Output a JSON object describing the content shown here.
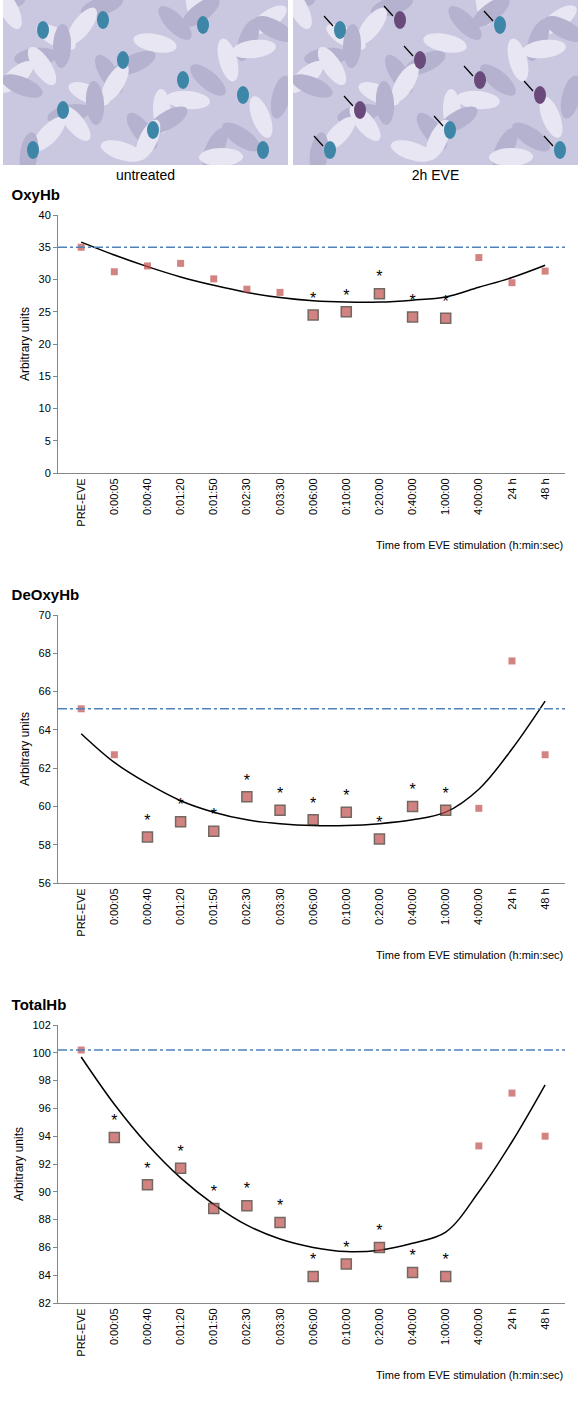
{
  "images": {
    "panels": [
      {
        "label": "untreated"
      },
      {
        "label": "2h EVE"
      }
    ]
  },
  "chart_data": [
    {
      "type": "scatter",
      "title": "OxyHb",
      "x_label": "Time from EVE stimulation (h:min:sec)",
      "y_label": "Arbitrary units",
      "categories": [
        "PRE-EVE",
        "0:00:05",
        "0:00:40",
        "0:01:20",
        "0:01:50",
        "0:02:30",
        "0:03:30",
        "0:06:00",
        "0:10:00",
        "0:20:00",
        "0:40:00",
        "1:00:00",
        "4:00:00",
        "24 h",
        "48 h"
      ],
      "values": [
        35.0,
        31.2,
        32.1,
        32.5,
        30.1,
        28.5,
        28.0,
        24.5,
        25.0,
        27.8,
        24.2,
        24.0,
        33.4,
        29.5,
        31.3
      ],
      "fit": [
        35.8,
        33.8,
        32.0,
        30.4,
        29.1,
        28.0,
        27.2,
        26.7,
        26.5,
        26.5,
        26.8,
        27.3,
        28.8,
        30.3,
        32.2
      ],
      "baseline": 35.0,
      "significant": [
        false,
        false,
        false,
        false,
        false,
        false,
        false,
        true,
        true,
        true,
        true,
        true,
        false,
        false,
        false
      ],
      "annotation": "*",
      "color": "#c0504d",
      "marker": "square",
      "grid": false,
      "ylim": [
        0,
        40
      ],
      "yticks": [
        0,
        5,
        10,
        15,
        20,
        25,
        30,
        35,
        40
      ]
    },
    {
      "type": "scatter",
      "title": "DeOxyHb",
      "x_label": "Time from EVE stimulation (h:min:sec)",
      "y_label": "Arbitrary units",
      "categories": [
        "PRE-EVE",
        "0:00:05",
        "0:00:40",
        "0:01:20",
        "0:01:50",
        "0:02:30",
        "0:03:30",
        "0:06:00",
        "0:10:00",
        "0:20:00",
        "0:40:00",
        "1:00:00",
        "4:00:00",
        "24 h",
        "48 h"
      ],
      "values": [
        65.1,
        62.7,
        58.4,
        59.2,
        58.7,
        60.5,
        59.8,
        59.3,
        59.7,
        58.3,
        60.0,
        59.8,
        59.9,
        67.6,
        62.7
      ],
      "fit": [
        63.8,
        62.3,
        61.2,
        60.3,
        59.7,
        59.3,
        59.1,
        59.0,
        59.0,
        59.1,
        59.3,
        59.7,
        60.9,
        63.0,
        65.5
      ],
      "baseline": 65.1,
      "significant": [
        false,
        false,
        true,
        true,
        true,
        true,
        true,
        true,
        true,
        true,
        true,
        true,
        false,
        false,
        false
      ],
      "annotation": "*",
      "color": "#c0504d",
      "marker": "square",
      "grid": false,
      "ylim": [
        56,
        70
      ],
      "yticks": [
        56,
        58,
        60,
        62,
        64,
        66,
        68,
        70
      ]
    },
    {
      "type": "scatter",
      "title": "TotalHb",
      "x_label": "Time from EVE stimulation (h:min:sec)",
      "y_label": "Arbitrary units",
      "categories": [
        "PRE-EVE",
        "0:00:05",
        "0:00:40",
        "0:01:20",
        "0:01:50",
        "0:02:30",
        "0:03:30",
        "0:06:00",
        "0:10:00",
        "0:20:00",
        "0:40:00",
        "1:00:00",
        "4:00:00",
        "24 h",
        "48 h"
      ],
      "values": [
        100.2,
        93.9,
        90.5,
        91.7,
        88.8,
        89.0,
        87.8,
        83.9,
        84.8,
        86.0,
        84.2,
        83.9,
        93.3,
        97.1,
        94.0
      ],
      "fit": [
        99.7,
        96.3,
        93.4,
        91.0,
        89.1,
        87.6,
        86.6,
        86.0,
        85.7,
        85.8,
        86.3,
        87.1,
        90.0,
        93.6,
        97.7
      ],
      "baseline": 100.2,
      "significant": [
        false,
        true,
        true,
        true,
        true,
        true,
        true,
        true,
        true,
        true,
        true,
        true,
        false,
        false,
        false
      ],
      "annotation": "*",
      "color": "#c0504d",
      "marker": "square",
      "grid": false,
      "ylim": [
        82,
        102
      ],
      "yticks": [
        82,
        84,
        86,
        88,
        90,
        92,
        94,
        96,
        98,
        100,
        102
      ]
    }
  ]
}
